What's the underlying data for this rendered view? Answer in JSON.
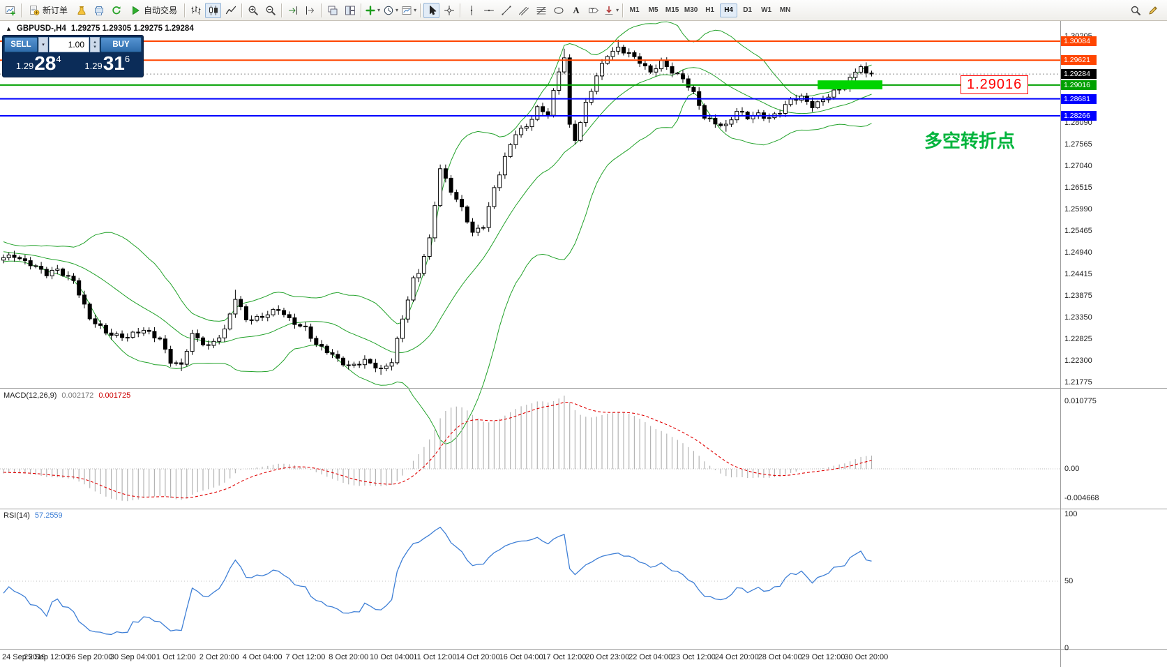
{
  "toolbar": {
    "groups": [
      {
        "items": [
          {
            "name": "new-chart-button",
            "icon": "newchart"
          }
        ]
      },
      {
        "items": [
          {
            "name": "new-order-button",
            "icon": "neworder",
            "label": "新订单"
          },
          {
            "name": "market-button",
            "icon": "market"
          },
          {
            "name": "profiles-button",
            "icon": "profiles"
          },
          {
            "name": "refresh-button",
            "icon": "refresh"
          },
          {
            "name": "autotrading-button",
            "icon": "play",
            "label": "自动交易"
          }
        ]
      },
      {
        "items": [
          {
            "name": "bar-chart-button",
            "icon": "bars"
          },
          {
            "name": "candlestick-chart-button",
            "icon": "candles",
            "active": true
          },
          {
            "name": "line-chart-button",
            "icon": "linechart"
          }
        ]
      },
      {
        "items": [
          {
            "name": "zoom-in-button",
            "icon": "zoomin"
          },
          {
            "name": "zoom-out-button",
            "icon": "zoomout"
          }
        ]
      },
      {
        "items": [
          {
            "name": "auto-scroll-button",
            "icon": "autoscroll"
          },
          {
            "name": "chart-shift-button",
            "icon": "shift"
          }
        ]
      },
      {
        "items": [
          {
            "name": "cascade-windows-button",
            "icon": "cascade"
          },
          {
            "name": "tile-windows-button",
            "icon": "tile"
          }
        ]
      },
      {
        "items": [
          {
            "name": "indicators-button",
            "icon": "indicators",
            "dropdown": true
          },
          {
            "name": "periods-button",
            "icon": "clock",
            "dropdown": true
          },
          {
            "name": "templates-button",
            "icon": "templates",
            "dropdown": true
          }
        ]
      },
      {
        "items": [
          {
            "name": "cursor-button",
            "icon": "cursor",
            "active": true
          },
          {
            "name": "crosshair-button",
            "icon": "crosshair"
          }
        ]
      },
      {
        "items": [
          {
            "name": "vertical-line-button",
            "icon": "vline"
          },
          {
            "name": "horizontal-line-button",
            "icon": "hline"
          },
          {
            "name": "trendline-button",
            "icon": "trend"
          },
          {
            "name": "channel-button",
            "icon": "channel"
          },
          {
            "name": "fibonacci-button",
            "icon": "fibo"
          },
          {
            "name": "shapes-button",
            "icon": "shapes"
          },
          {
            "name": "text-button",
            "icon": "textA"
          },
          {
            "name": "label-button",
            "icon": "labelT"
          },
          {
            "name": "arrows-button",
            "icon": "arrow",
            "dropdown": true
          }
        ]
      },
      {
        "items": [
          {
            "name": "tf-m1-button",
            "label": "M1"
          },
          {
            "name": "tf-m5-button",
            "label": "M5"
          },
          {
            "name": "tf-m15-button",
            "label": "M15"
          },
          {
            "name": "tf-m30-button",
            "label": "M30"
          },
          {
            "name": "tf-h1-button",
            "label": "H1"
          },
          {
            "name": "tf-h4-button",
            "label": "H4",
            "active": true
          },
          {
            "name": "tf-d1-button",
            "label": "D1"
          },
          {
            "name": "tf-w1-button",
            "label": "W1"
          },
          {
            "name": "tf-mn-button",
            "label": "MN"
          }
        ]
      }
    ],
    "right": [
      {
        "name": "search-button",
        "icon": "search"
      },
      {
        "name": "quick-edit-button",
        "icon": "pencil"
      }
    ]
  },
  "chart_header": {
    "tick": "▲",
    "symbol_period": "GBPUSD-,H4",
    "ohlc": "1.29275 1.29305 1.29275 1.29284"
  },
  "trade_panel": {
    "sell_label": "SELL",
    "buy_label": "BUY",
    "lot": "1.00",
    "dropdown_glyph": "▾",
    "spinner_up": "▴",
    "spinner_down": "▾",
    "sell_price": [
      "1.29",
      "28",
      "4"
    ],
    "buy_price": [
      "1.29",
      "31",
      "6"
    ]
  },
  "chart_data": {
    "type": "candlestick",
    "symbol": "GBPUSD-",
    "period": "H4",
    "grid": false,
    "colors": {
      "bull": "#FFFFFF",
      "bear": "#000000",
      "outline": "#000000",
      "bollinger": "#22A22A",
      "macd_hist": "#b4b4b4",
      "macd_signal": "#E00000",
      "rsi": "#3E7FD6",
      "rect": "#00D400",
      "bid_line": "#909090"
    },
    "anchors": [
      [
        0,
        1.2478
      ],
      [
        2,
        1.2487
      ],
      [
        5,
        1.2468
      ],
      [
        8,
        1.2438
      ],
      [
        10,
        1.2452
      ],
      [
        13,
        1.2428
      ],
      [
        16,
        1.233
      ],
      [
        19,
        1.23
      ],
      [
        23,
        1.2289
      ],
      [
        26,
        1.2302
      ],
      [
        29,
        1.2286
      ],
      [
        31,
        1.223
      ],
      [
        33,
        1.2216
      ],
      [
        35,
        1.2292
      ],
      [
        38,
        1.2268
      ],
      [
        41,
        1.2302
      ],
      [
        43,
        1.238
      ],
      [
        45,
        1.2332
      ],
      [
        48,
        1.234
      ],
      [
        51,
        1.2352
      ],
      [
        53,
        1.233
      ],
      [
        56,
        1.2312
      ],
      [
        58,
        1.2268
      ],
      [
        61,
        1.2242
      ],
      [
        64,
        1.222
      ],
      [
        67,
        1.2228
      ],
      [
        70,
        1.2206
      ],
      [
        72,
        1.2232
      ],
      [
        74,
        1.2335
      ],
      [
        76,
        1.2425
      ],
      [
        77,
        1.2442
      ],
      [
        79,
        1.2525
      ],
      [
        81,
        1.2702
      ],
      [
        83,
        1.2645
      ],
      [
        85,
        1.2598
      ],
      [
        87,
        1.254
      ],
      [
        89,
        1.2562
      ],
      [
        91,
        1.2652
      ],
      [
        93,
        1.2722
      ],
      [
        95,
        1.2782
      ],
      [
        97,
        1.2802
      ],
      [
        99,
        1.2848
      ],
      [
        101,
        1.283
      ],
      [
        103,
        1.2932
      ],
      [
        104,
        1.2968
      ],
      [
        105,
        1.2802
      ],
      [
        106,
        1.2772
      ],
      [
        108,
        1.2858
      ],
      [
        110,
        1.2922
      ],
      [
        112,
        1.2972
      ],
      [
        114,
        1.2992
      ],
      [
        116,
        1.2982
      ],
      [
        118,
        1.2958
      ],
      [
        120,
        1.2928
      ],
      [
        122,
        1.2958
      ],
      [
        124,
        1.2938
      ],
      [
        126,
        1.2918
      ],
      [
        128,
        1.2878
      ],
      [
        130,
        1.2822
      ],
      [
        132,
        1.2812
      ],
      [
        134,
        1.2804
      ],
      [
        136,
        1.2836
      ],
      [
        138,
        1.282
      ],
      [
        140,
        1.2832
      ],
      [
        142,
        1.2824
      ],
      [
        144,
        1.2836
      ],
      [
        146,
        1.2862
      ],
      [
        148,
        1.2872
      ],
      [
        150,
        1.2854
      ],
      [
        152,
        1.2866
      ],
      [
        154,
        1.2882
      ],
      [
        156,
        1.2896
      ],
      [
        158,
        1.2938
      ],
      [
        159,
        1.2952
      ],
      [
        160,
        1.2928
      ],
      [
        161,
        1.29284
      ]
    ],
    "wicks": [
      [
        33,
        "low",
        1.2205
      ],
      [
        43,
        "high",
        1.2403
      ],
      [
        70,
        "low",
        1.2196
      ],
      [
        81,
        "high",
        1.2708
      ],
      [
        104,
        "high",
        1.299
      ],
      [
        114,
        "high",
        1.3012
      ],
      [
        134,
        "low",
        1.2788
      ]
    ],
    "pre_closes": [
      1.2505,
      1.2512,
      1.252,
      1.2528,
      1.2534,
      1.253,
      1.2522,
      1.2515,
      1.2508,
      1.25,
      1.2495,
      1.2502,
      1.251,
      1.2506,
      1.2498,
      1.2492,
      1.2486,
      1.2494,
      1.25,
      1.2496,
      1.2488,
      1.2482,
      1.2478,
      1.2482,
      1.248
    ],
    "bollinger": {
      "period": 20,
      "deviation": 2
    },
    "hlines": [
      {
        "price": 1.30084,
        "label": "1.30084",
        "color": "#FF4500"
      },
      {
        "price": 1.29621,
        "label": "1.29621",
        "color": "#FF4500"
      },
      {
        "price": 1.29016,
        "label": "1.29016",
        "color": "#00A000"
      },
      {
        "price": 1.28681,
        "label": "1.28681",
        "color": "#0000FF"
      },
      {
        "price": 1.28266,
        "label": "1.28266",
        "color": "#0000FF"
      }
    ],
    "bid_tag": {
      "price": 1.29284,
      "label": "1.29284",
      "color": "#000000"
    },
    "rect": {
      "i1": 151,
      "i2": 163,
      "price_top": 1.2913,
      "price_bottom": 1.2891
    },
    "price_axis_labels": [
      "1.30205",
      "1.28090",
      "1.27565",
      "1.27040",
      "1.26515",
      "1.25990",
      "1.25465",
      "1.24940",
      "1.24415",
      "1.23875",
      "1.23350",
      "1.22825",
      "1.22300",
      "1.21775"
    ],
    "x_labels": [
      "24 Sep 2019",
      "25 Sep 12:00",
      "26 Sep 20:00",
      "30 Sep 04:00",
      "1 Oct 12:00",
      "2 Oct 20:00",
      "4 Oct 04:00",
      "7 Oct 12:00",
      "8 Oct 20:00",
      "10 Oct 04:00",
      "11 Oct 12:00",
      "14 Oct 20:00",
      "16 Oct 04:00",
      "17 Oct 12:00",
      "20 Oct 23:00",
      "22 Oct 04:00",
      "23 Oct 12:00",
      "24 Oct 20:00",
      "28 Oct 04:00",
      "29 Oct 12:00",
      "30 Oct 20:00"
    ],
    "macd": {
      "header": "MACD(12,26,9)",
      "value": "0.002172",
      "signal": "0.001725",
      "params": [
        12,
        26,
        9
      ],
      "axis": [
        "0.010775",
        "0.00",
        "-0.004668"
      ]
    },
    "rsi": {
      "header": "RSI(14)",
      "value": "57.2559",
      "period": 14,
      "axis": [
        "100",
        "50",
        "0"
      ]
    },
    "annotations": {
      "price_label": "1.29016",
      "turning_text": "多空转折点"
    }
  }
}
